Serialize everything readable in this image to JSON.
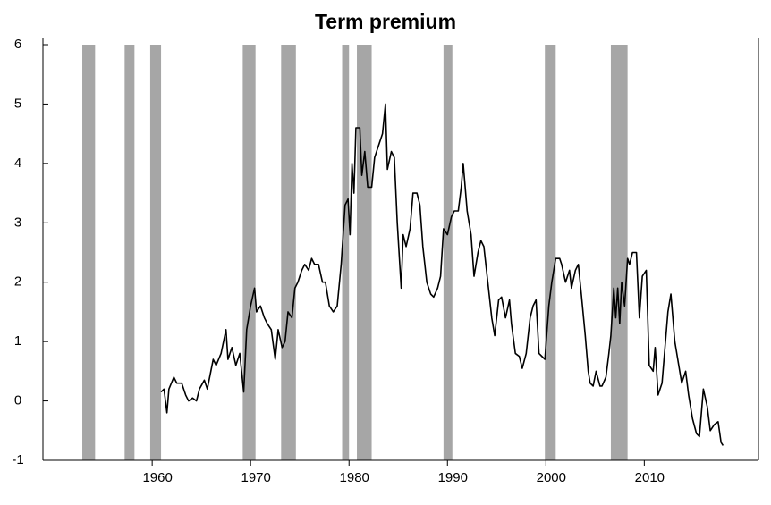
{
  "chart_data": {
    "type": "line",
    "title": "Term premium",
    "color": "#000000",
    "shade_color": "#a6a6a6",
    "xlim": [
      1948.9,
      2021.6
    ],
    "xticks": [
      1960,
      1970,
      1980,
      1990,
      2000,
      2010
    ],
    "ylim": [
      -1,
      6
    ],
    "yticks": [
      -1,
      0,
      1,
      2,
      3,
      4,
      5,
      6
    ],
    "shaded_regions": [
      [
        1952.9,
        1954.2
      ],
      [
        1957.2,
        1958.2
      ],
      [
        1959.8,
        1960.9
      ],
      [
        1969.2,
        1970.5
      ],
      [
        1973.1,
        1974.6
      ],
      [
        1979.3,
        1980.0
      ],
      [
        1980.8,
        1982.3
      ],
      [
        1989.6,
        1990.5
      ],
      [
        1999.9,
        2001.0
      ],
      [
        2006.6,
        2008.3
      ]
    ],
    "x": [
      1960.9,
      1961.2,
      1961.5,
      1961.7,
      1962.2,
      1962.5,
      1963.0,
      1963.4,
      1963.7,
      1964.1,
      1964.5,
      1964.8,
      1965.3,
      1965.6,
      1966.2,
      1966.5,
      1967.0,
      1967.5,
      1967.7,
      1968.1,
      1968.5,
      1968.9,
      1969.3,
      1969.6,
      1970.0,
      1970.4,
      1970.6,
      1971.0,
      1971.4,
      1971.7,
      1972.1,
      1972.5,
      1972.8,
      1973.2,
      1973.5,
      1973.8,
      1974.2,
      1974.5,
      1974.8,
      1975.2,
      1975.5,
      1975.9,
      1976.2,
      1976.5,
      1976.9,
      1977.3,
      1977.6,
      1978.0,
      1978.4,
      1978.8,
      1979.2,
      1979.6,
      1979.9,
      1980.1,
      1980.3,
      1980.5,
      1980.7,
      1981.1,
      1981.3,
      1981.6,
      1981.9,
      1982.3,
      1982.6,
      1983.0,
      1983.4,
      1983.7,
      1983.9,
      1984.3,
      1984.6,
      1984.9,
      1985.3,
      1985.5,
      1985.8,
      1986.2,
      1986.5,
      1986.9,
      1987.2,
      1987.5,
      1987.9,
      1988.3,
      1988.6,
      1989.0,
      1989.3,
      1989.6,
      1990.0,
      1990.4,
      1990.7,
      1991.1,
      1991.4,
      1991.6,
      1992.0,
      1992.4,
      1992.7,
      1993.1,
      1993.4,
      1993.7,
      1994.1,
      1994.5,
      1994.8,
      1995.2,
      1995.5,
      1995.9,
      1996.3,
      1996.5,
      1996.9,
      1997.3,
      1997.6,
      1998.0,
      1998.4,
      1998.7,
      1999.0,
      1999.3,
      1999.6,
      1999.9,
      2000.3,
      2000.6,
      2001.0,
      2001.4,
      2001.6,
      2002.0,
      2002.4,
      2002.6,
      2003.0,
      2003.3,
      2003.6,
      2004.0,
      2004.3,
      2004.5,
      2004.8,
      2005.1,
      2005.5,
      2005.7,
      2006.1,
      2006.4,
      2006.6,
      2006.9,
      2007.1,
      2007.3,
      2007.5,
      2007.7,
      2008.0,
      2008.3,
      2008.5,
      2008.8,
      2009.2,
      2009.5,
      2009.8,
      2010.2,
      2010.5,
      2010.9,
      2011.1,
      2011.4,
      2011.8,
      2012.1,
      2012.4,
      2012.7,
      2013.1,
      2013.5,
      2013.8,
      2014.2,
      2014.5,
      2014.9,
      2015.3,
      2015.6,
      2016.0,
      2016.4,
      2016.7,
      2017.1,
      2017.5,
      2017.8,
      2018.0
    ],
    "values": [
      0.15,
      0.2,
      -0.2,
      0.2,
      0.4,
      0.3,
      0.3,
      0.1,
      0.0,
      0.05,
      0.0,
      0.2,
      0.35,
      0.2,
      0.7,
      0.6,
      0.8,
      1.2,
      0.7,
      0.9,
      0.6,
      0.8,
      0.15,
      1.2,
      1.6,
      1.9,
      1.5,
      1.6,
      1.4,
      1.3,
      1.2,
      0.7,
      1.2,
      0.9,
      1.0,
      1.5,
      1.4,
      1.9,
      2.0,
      2.2,
      2.3,
      2.2,
      2.4,
      2.3,
      2.3,
      2.0,
      2.0,
      1.6,
      1.5,
      1.6,
      2.3,
      3.3,
      3.4,
      2.8,
      4.0,
      3.5,
      4.6,
      4.6,
      3.8,
      4.2,
      3.6,
      3.6,
      4.1,
      4.3,
      4.5,
      5.0,
      3.9,
      4.2,
      4.1,
      3.0,
      1.9,
      2.8,
      2.6,
      2.9,
      3.5,
      3.5,
      3.3,
      2.6,
      2.0,
      1.8,
      1.75,
      1.9,
      2.1,
      2.9,
      2.8,
      3.1,
      3.2,
      3.2,
      3.6,
      4.0,
      3.2,
      2.8,
      2.1,
      2.5,
      2.7,
      2.6,
      2.0,
      1.4,
      1.1,
      1.7,
      1.75,
      1.4,
      1.7,
      1.3,
      0.8,
      0.75,
      0.55,
      0.8,
      1.4,
      1.6,
      1.7,
      0.8,
      0.75,
      0.7,
      1.6,
      2.0,
      2.4,
      2.4,
      2.3,
      2.0,
      2.2,
      1.9,
      2.2,
      2.3,
      1.8,
      1.1,
      0.5,
      0.3,
      0.25,
      0.5,
      0.25,
      0.25,
      0.4,
      0.8,
      1.1,
      1.9,
      1.4,
      1.9,
      1.3,
      2.0,
      1.6,
      2.4,
      2.3,
      2.5,
      2.5,
      1.4,
      2.1,
      2.2,
      0.6,
      0.5,
      0.9,
      0.1,
      0.3,
      0.9,
      1.5,
      1.8,
      1.0,
      0.6,
      0.3,
      0.5,
      0.1,
      -0.3,
      -0.55,
      -0.6,
      0.2,
      -0.1,
      -0.5,
      -0.4,
      -0.35,
      -0.7,
      -0.75
    ]
  }
}
